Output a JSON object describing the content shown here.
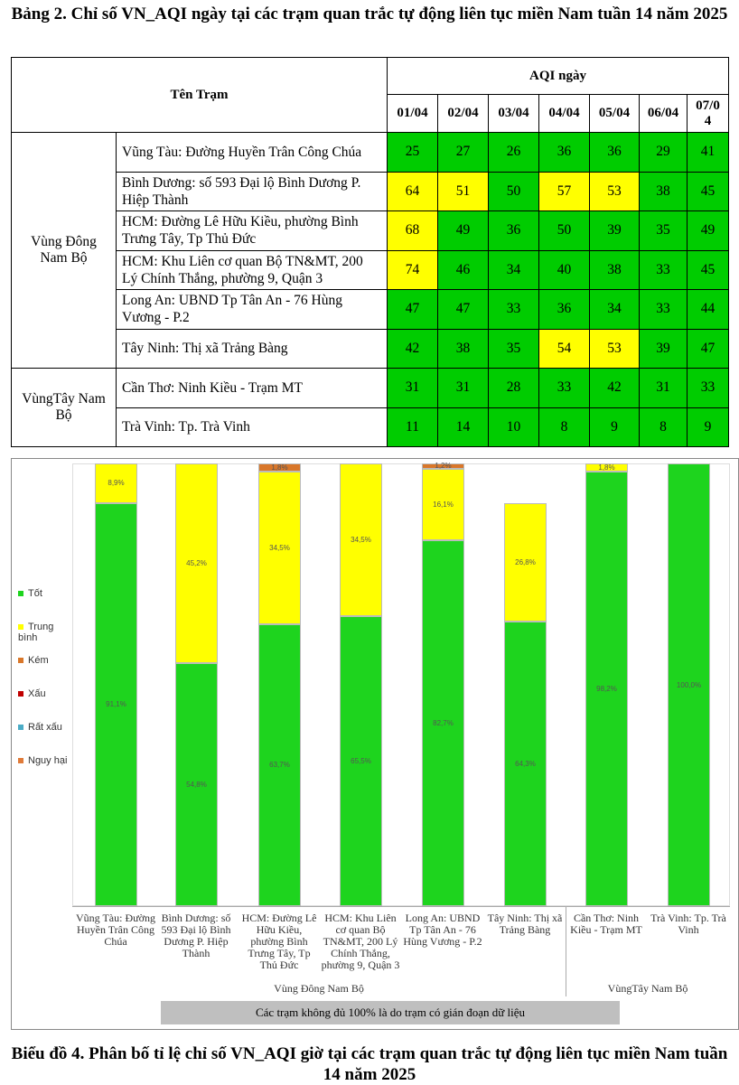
{
  "table_title": "Bảng 2. Chỉ số VN_AQI ngày tại các trạm quan trắc tự động liên tục miền Nam tuần 14 năm 2025",
  "table": {
    "station_header": "Tên Trạm",
    "aqi_header": "AQI ngày",
    "dates": [
      "01/04",
      "02/04",
      "03/04",
      "04/04",
      "05/04",
      "06/04",
      "07/04"
    ],
    "regions": [
      {
        "name": "Vùng Đông Nam Bộ",
        "stations": [
          {
            "name": "Vũng Tàu: Đường Huyền Trân Công Chúa",
            "values": [
              25,
              27,
              26,
              36,
              36,
              29,
              41
            ]
          },
          {
            "name": "Bình Dương: số 593 Đại lộ Bình Dương P. Hiệp Thành",
            "values": [
              64,
              51,
              50,
              57,
              53,
              38,
              45
            ]
          },
          {
            "name": "HCM: Đường Lê Hữu Kiều, phường Bình Trưng Tây, Tp Thủ Đức",
            "values": [
              68,
              49,
              36,
              50,
              39,
              35,
              49
            ]
          },
          {
            "name": "HCM: Khu Liên cơ quan Bộ TN&MT, 200 Lý Chính Thắng, phường 9, Quận 3",
            "values": [
              74,
              46,
              34,
              40,
              38,
              33,
              45
            ]
          },
          {
            "name": "Long An: UBND Tp Tân An - 76 Hùng Vương - P.2",
            "values": [
              47,
              47,
              33,
              36,
              34,
              33,
              44
            ]
          },
          {
            "name": "Tây Ninh: Thị xã Trảng Bàng",
            "values": [
              42,
              38,
              35,
              54,
              53,
              39,
              47
            ]
          }
        ]
      },
      {
        "name": "VùngTây Nam Bộ",
        "stations": [
          {
            "name": "Cần Thơ: Ninh Kiều - Trạm MT",
            "values": [
              31,
              31,
              28,
              33,
              42,
              31,
              33
            ]
          },
          {
            "name": "Trà Vinh: Tp. Trà Vinh",
            "values": [
              11,
              14,
              10,
              8,
              9,
              8,
              9
            ]
          }
        ]
      }
    ],
    "colors": {
      "good": "#00cc00",
      "moderate": "#ffff00"
    }
  },
  "chart_data": {
    "type": "bar",
    "stacked": true,
    "title": "Biểu đồ 4. Phân bố tỉ lệ chỉ số VN_AQI giờ tại các trạm quan trắc tự động liên tục miền Nam tuần 14 năm 2025",
    "categories": [
      "Vũng Tàu: Đường Huyền Trân Công Chúa",
      "Bình Dương: số 593 Đại lộ Bình Dương P. Hiệp Thành",
      "HCM: Đường Lê Hữu Kiều, phường Bình Trưng Tây, Tp Thủ Đức",
      "HCM: Khu Liên cơ quan Bộ TN&MT, 200 Lý Chính Thắng, phường 9, Quận 3",
      "Long An: UBND Tp Tân An - 76 Hùng Vương - P.2",
      "Tây Ninh: Thị xã Trảng Bàng",
      "Cần Thơ: Ninh Kiều - Trạm MT",
      "Trà Vinh: Tp. Trà Vinh"
    ],
    "groups": [
      {
        "name": "Vùng Đông Nam Bộ",
        "count": 6
      },
      {
        "name": "VùngTây Nam Bộ",
        "count": 2
      }
    ],
    "series": [
      {
        "name": "Tốt",
        "color": "#1ed41e",
        "values": [
          91.1,
          54.8,
          63.7,
          65.5,
          82.7,
          64.3,
          98.2,
          100.0
        ]
      },
      {
        "name": "Trung bình",
        "color": "#ffff00",
        "values": [
          8.9,
          45.2,
          34.5,
          34.5,
          16.1,
          26.8,
          1.8,
          0
        ]
      },
      {
        "name": "Kém",
        "color": "#d9772a",
        "values": [
          0,
          0,
          1.8,
          0,
          1.2,
          0,
          0,
          0
        ]
      },
      {
        "name": "Xấu",
        "color": "#c00000",
        "values": [
          0,
          0,
          0,
          0,
          0,
          0,
          0,
          0
        ]
      },
      {
        "name": "Rất xấu",
        "color": "#4bacc6",
        "values": [
          0,
          0,
          0,
          0,
          0,
          0,
          0,
          0
        ]
      },
      {
        "name": "Nguy hại",
        "color": "#e07b39",
        "values": [
          0,
          0,
          0,
          0,
          0,
          0,
          0,
          0
        ]
      }
    ],
    "ylim": [
      0,
      100
    ],
    "legend": "left",
    "note": "Các trạm không đủ 100% là do trạm có gián đoạn dữ liệu"
  }
}
